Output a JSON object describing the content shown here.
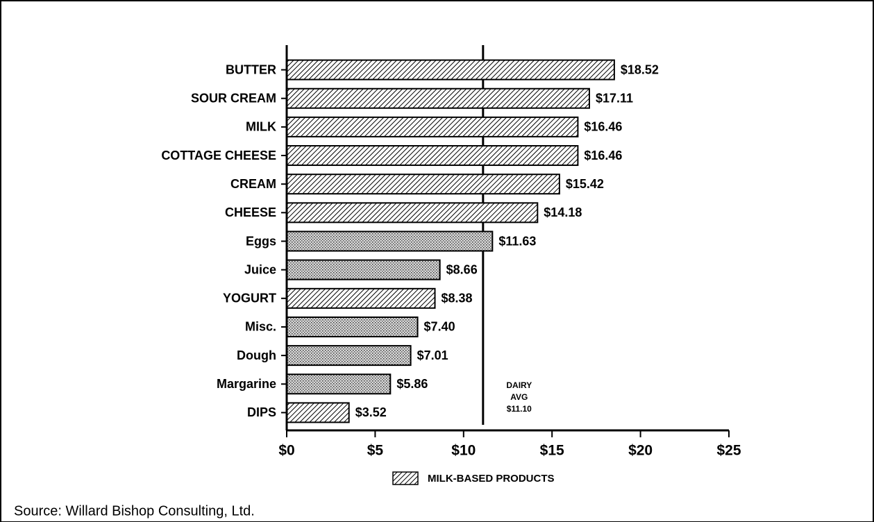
{
  "chart_data": {
    "type": "bar",
    "orientation": "horizontal",
    "categories": [
      "BUTTER",
      "SOUR CREAM",
      "MILK",
      "COTTAGE CHEESE",
      "CREAM",
      "CHEESE",
      "Eggs",
      "Juice",
      "YOGURT",
      "Misc.",
      "Dough",
      "Margarine",
      "DIPS"
    ],
    "values": [
      18.52,
      17.11,
      16.46,
      16.46,
      15.42,
      14.18,
      11.63,
      8.66,
      8.38,
      7.4,
      7.01,
      5.86,
      3.52
    ],
    "value_labels": [
      "$18.52",
      "$17.11",
      "$16.46",
      "$16.46",
      "$15.42",
      "$14.18",
      "$11.63",
      "$8.66",
      "$8.38",
      "$7.40",
      "$7.01",
      "$5.86",
      "$3.52"
    ],
    "bar_styles": [
      "hatch",
      "hatch",
      "hatch",
      "hatch",
      "hatch",
      "hatch",
      "stipple",
      "stipple",
      "hatch",
      "stipple",
      "stipple",
      "stipple",
      "hatch"
    ],
    "color": "#000000",
    "xlim": [
      0,
      25
    ],
    "xticks": [
      {
        "value": 0,
        "label": "$0"
      },
      {
        "value": 5,
        "label": "$5"
      },
      {
        "value": 10,
        "label": "$10"
      },
      {
        "value": 15,
        "label": "$15"
      },
      {
        "value": 20,
        "label": "$20"
      },
      {
        "value": 25,
        "label": "$25"
      }
    ],
    "reference_line": {
      "value": 11.1,
      "label_lines": [
        "DAIRY",
        "AVG",
        "$11.10"
      ]
    },
    "legend": {
      "label": "MILK-BASED PRODUCTS",
      "style": "hatch"
    },
    "source": "Source:  Willard Bishop Consulting, Ltd."
  }
}
